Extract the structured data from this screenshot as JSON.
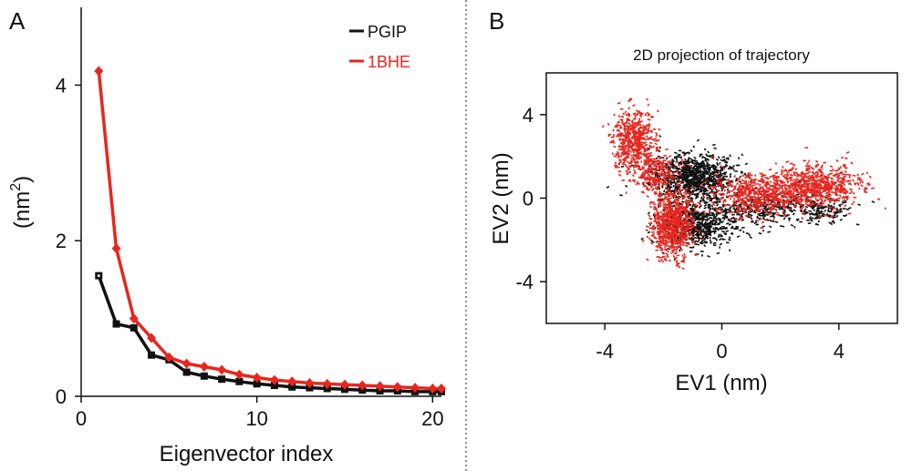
{
  "panels": {
    "a": {
      "letter": "A"
    },
    "b": {
      "letter": "B"
    }
  },
  "colors": {
    "pgip": "#111111",
    "bhe": "#e8261f"
  },
  "chart_data": [
    {
      "panel": "A",
      "type": "line",
      "title": "",
      "xlabel": "Eigenvector index",
      "ylabel": "(nm²)",
      "ylabel_main": "(nm",
      "ylabel_sup": "2",
      "ylabel_close": ")",
      "xlim": [
        0,
        20.5
      ],
      "ylim": [
        0,
        5.0
      ],
      "xticks": [
        "0",
        "10",
        "20"
      ],
      "yticks": [
        "0",
        "2",
        "4"
      ],
      "legend_position": "top-right",
      "series": [
        {
          "name": "PGIP",
          "color": "#111111",
          "marker": "square",
          "x": [
            1,
            2,
            3,
            4,
            5,
            6,
            7,
            8,
            9,
            10,
            11,
            12,
            13,
            14,
            15,
            16,
            17,
            18,
            19,
            20,
            20.5
          ],
          "y": [
            1.55,
            0.93,
            0.88,
            0.53,
            0.47,
            0.31,
            0.26,
            0.22,
            0.19,
            0.16,
            0.14,
            0.12,
            0.11,
            0.1,
            0.09,
            0.08,
            0.07,
            0.07,
            0.06,
            0.06,
            0.06
          ]
        },
        {
          "name": "1BHE",
          "color": "#e8261f",
          "marker": "diamond",
          "x": [
            1,
            2,
            3,
            4,
            5,
            6,
            7,
            8,
            9,
            10,
            11,
            12,
            13,
            14,
            15,
            16,
            17,
            18,
            19,
            20,
            20.5
          ],
          "y": [
            4.18,
            1.9,
            1.0,
            0.75,
            0.5,
            0.42,
            0.38,
            0.34,
            0.28,
            0.24,
            0.21,
            0.19,
            0.17,
            0.16,
            0.15,
            0.14,
            0.13,
            0.12,
            0.11,
            0.1,
            0.1
          ]
        }
      ]
    },
    {
      "panel": "B",
      "type": "scatter",
      "title": "2D projection of trajectory",
      "xlabel": "EV1 (nm)",
      "ylabel": "EV2 (nm)",
      "xlim": [
        -6,
        6
      ],
      "ylim": [
        -6,
        6
      ],
      "xticks": [
        "-4",
        "0",
        "4"
      ],
      "yticks": [
        "4",
        "0",
        "-4"
      ],
      "series": [
        {
          "name": "PGIP",
          "color": "#111111",
          "clusters": [
            {
              "cx": -1.0,
              "cy": 1.0,
              "sx": 0.9,
              "sy": 0.7,
              "n": 900
            },
            {
              "cx": -0.8,
              "cy": -1.3,
              "sx": 0.8,
              "sy": 0.7,
              "n": 600
            },
            {
              "cx": 1.5,
              "cy": -0.5,
              "sx": 1.2,
              "sy": 0.5,
              "n": 300
            },
            {
              "cx": 3.5,
              "cy": -0.6,
              "sx": 0.6,
              "sy": 0.4,
              "n": 120
            }
          ]
        },
        {
          "name": "1BHE",
          "color": "#e8261f",
          "clusters": [
            {
              "cx": -3.0,
              "cy": 2.8,
              "sx": 0.45,
              "sy": 0.9,
              "n": 500
            },
            {
              "cx": -2.3,
              "cy": 1.2,
              "sx": 0.5,
              "sy": 0.6,
              "n": 250
            },
            {
              "cx": -1.7,
              "cy": -1.3,
              "sx": 0.45,
              "sy": 1.0,
              "n": 700
            },
            {
              "cx": 1.3,
              "cy": 0.2,
              "sx": 1.0,
              "sy": 0.6,
              "n": 600
            },
            {
              "cx": 3.3,
              "cy": 0.6,
              "sx": 0.9,
              "sy": 0.6,
              "n": 600
            }
          ]
        }
      ]
    }
  ]
}
